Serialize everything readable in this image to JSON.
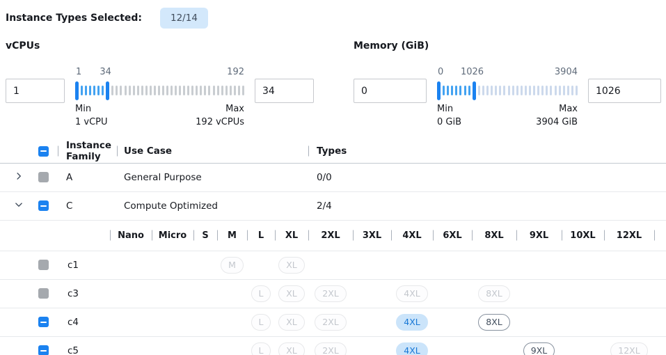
{
  "header": {
    "label": "Instance Types Selected:",
    "badge": "12/14"
  },
  "filters": {
    "vcpus": {
      "title": "vCPUs",
      "low_value": "1",
      "high_value": "34",
      "scale": {
        "min": 1,
        "max": 192,
        "low": 1,
        "high": 34
      },
      "labels": {
        "low_top": "1",
        "high_top": "34",
        "max_top": "192",
        "min_caption": "Min",
        "max_caption": "Max",
        "min_sub": "1 vCPU",
        "max_sub": "192 vCPUs"
      }
    },
    "memory": {
      "title": "Memory (GiB)",
      "low_value": "0",
      "high_value": "1026",
      "scale": {
        "min": 0,
        "max": 3904,
        "low": 0,
        "high": 1026
      },
      "labels": {
        "low_top": "0",
        "high_top": "1026",
        "max_top": "3904",
        "min_caption": "Min",
        "max_caption": "Max",
        "min_sub": "0 GiB",
        "max_sub": "3904 GiB"
      }
    }
  },
  "table": {
    "columns": {
      "family": "Instance Family",
      "use_case": "Use Case",
      "types": "Types"
    },
    "size_columns": [
      "Nano",
      "Micro",
      "S",
      "M",
      "L",
      "XL",
      "2XL",
      "3XL",
      "4XL",
      "6XL",
      "8XL",
      "9XL",
      "10XL",
      "12XL"
    ],
    "families": [
      {
        "family": "A",
        "use_case": "General Purpose",
        "types": "0/0",
        "expanded": false,
        "checkbox": "disabled",
        "children": []
      },
      {
        "family": "C",
        "use_case": "Compute Optimized",
        "types": "2/4",
        "expanded": true,
        "checkbox": "indeterminate",
        "children": [
          {
            "family": "c1",
            "checkbox": "disabled",
            "pills": {
              "M": "disabled",
              "XL": "disabled"
            }
          },
          {
            "family": "c3",
            "checkbox": "disabled",
            "pills": {
              "L": "disabled",
              "XL": "disabled",
              "2XL": "disabled",
              "4XL": "disabled",
              "8XL": "disabled"
            }
          },
          {
            "family": "c4",
            "checkbox": "indeterminate",
            "pills": {
              "L": "disabled",
              "XL": "disabled",
              "2XL": "disabled",
              "4XL": "selected",
              "8XL": "available"
            }
          },
          {
            "family": "c5",
            "checkbox": "indeterminate",
            "pills": {
              "L": "disabled",
              "XL": "disabled",
              "2XL": "disabled",
              "4XL": "selected",
              "9XL": "available",
              "12XL": "disabled"
            }
          }
        ]
      }
    ]
  },
  "colors": {
    "accent_blue": "#1b82f0",
    "badge_bg": "#d3e8fb",
    "selected_pill_bg": "#cbe4fa",
    "selected_pill_text": "#1777d6",
    "tick_active": "#43a2f1",
    "tick_inactive_gray": "#c9cdd1",
    "tick_inactive_blue": "#ccd9ec",
    "checkbox_disabled": "#a5a9ae"
  }
}
